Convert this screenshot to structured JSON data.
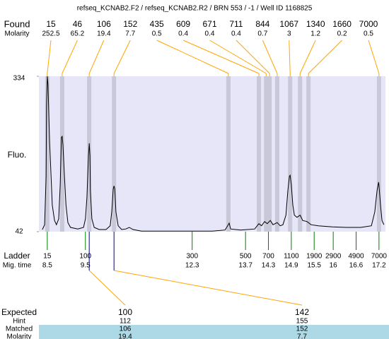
{
  "chart_data": {
    "type": "electropherogram",
    "title": "refseq_KCNAB2.F2 / refseq_KCNAB2.R2 / BRN 553 / -1 / Well ID 1168825",
    "y_label": "Fluo.",
    "ylim": [
      42,
      334
    ],
    "yticks": [
      42,
      334
    ],
    "xlim": [
      8.28,
      17.37
    ],
    "color": "#000000",
    "x": [
      8.37,
      8.43,
      8.47,
      8.48,
      8.5,
      8.52,
      8.54,
      8.56,
      8.6,
      8.63,
      8.69,
      8.74,
      8.8,
      8.84,
      8.86,
      8.87,
      8.89,
      8.91,
      8.95,
      8.99,
      9.04,
      9.11,
      9.3,
      9.45,
      9.5,
      9.54,
      9.58,
      9.6,
      9.62,
      9.63,
      9.67,
      9.73,
      9.86,
      10.04,
      10.15,
      10.19,
      10.23,
      10.25,
      10.27,
      10.3,
      10.36,
      10.45,
      10.56,
      10.65,
      10.75,
      10.97,
      11.9,
      12.83,
      13.16,
      13.23,
      13.27,
      13.31,
      13.57,
      13.94,
      14.05,
      14.12,
      14.2,
      14.27,
      14.35,
      14.42,
      14.53,
      14.61,
      14.68,
      14.76,
      14.81,
      14.85,
      14.87,
      14.9,
      14.94,
      14.98,
      15.05,
      15.13,
      15.2,
      15.31,
      15.42,
      15.61,
      15.98,
      16.35,
      16.72,
      17.0,
      17.09,
      17.15,
      17.19,
      17.2,
      17.24,
      17.28,
      17.33
    ],
    "values": [
      46,
      55,
      146,
      278,
      334,
      318,
      265,
      212,
      146,
      92,
      63,
      55,
      66,
      132,
      192,
      219,
      221,
      205,
      146,
      92,
      59,
      50,
      47,
      50,
      66,
      106,
      185,
      208,
      185,
      119,
      66,
      50,
      46,
      46,
      53,
      79,
      122,
      128,
      122,
      79,
      53,
      46,
      47,
      50,
      46,
      43,
      43,
      43,
      45,
      53,
      58,
      47,
      45,
      47,
      57,
      53,
      61,
      57,
      63,
      55,
      59,
      53,
      55,
      73,
      119,
      146,
      148,
      130,
      92,
      73,
      69,
      73,
      63,
      61,
      55,
      53,
      51,
      50,
      50,
      53,
      79,
      119,
      135,
      130,
      92,
      63,
      55
    ],
    "found": {
      "label": "Found",
      "molarity_label": "Molarity",
      "color": "#ffa500",
      "sizes": [
        15,
        46,
        106,
        152,
        435,
        609,
        671,
        711,
        844,
        1067,
        1340,
        1660,
        7000
      ],
      "molarity": [
        252.5,
        65.2,
        19.4,
        7.7,
        0.5,
        0.4,
        0.4,
        0.4,
        0.7,
        3,
        1.2,
        0.2,
        0.5
      ],
      "times": [
        8.5,
        8.89,
        9.6,
        10.25,
        13.25,
        14.05,
        14.24,
        14.33,
        14.53,
        14.87,
        15.13,
        15.35,
        17.2
      ]
    },
    "ladder": {
      "label": "Ladder",
      "time_label": "Mig. time",
      "color": "#008000",
      "sizes": [
        15,
        100,
        300,
        500,
        700,
        1100,
        1900,
        2900,
        4900,
        7000
      ],
      "times": [
        8.5,
        9.5,
        12.3,
        13.7,
        14.3,
        14.9,
        15.5,
        16,
        16.6,
        17.2
      ]
    },
    "expected": {
      "label": "Expected",
      "values": [
        100,
        142
      ],
      "rows": [
        {
          "label": "Hint",
          "values": [
            112,
            155
          ]
        },
        {
          "label": "Matched",
          "values": [
            106,
            152
          ]
        },
        {
          "label": "Molarity",
          "values": [
            19.4,
            7.7
          ]
        }
      ]
    }
  }
}
